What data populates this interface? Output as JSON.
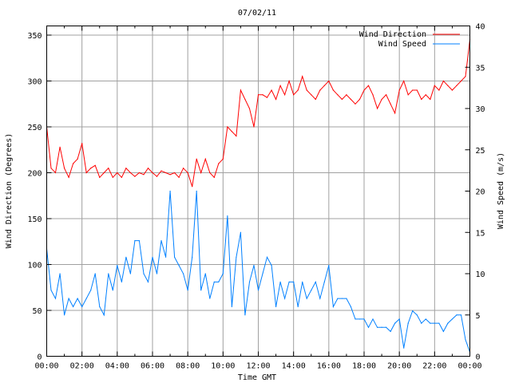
{
  "chart_data": {
    "type": "line",
    "title": "07/02/11",
    "xlabel": "Time GMT",
    "ylabel": "Wind Direction (Degrees)",
    "y2label": "Wind Speed (m/s)",
    "xlim": [
      0,
      24
    ],
    "ylim": [
      0,
      360
    ],
    "y2lim": [
      0,
      40
    ],
    "x_ticks": [
      "00:00",
      "02:00",
      "04:00",
      "06:00",
      "08:00",
      "10:00",
      "12:00",
      "14:00",
      "16:00",
      "18:00",
      "20:00",
      "22:00",
      "00:00"
    ],
    "y_ticks": [
      "0",
      "50",
      "100",
      "150",
      "200",
      "250",
      "300",
      "350"
    ],
    "y2_ticks": [
      "0",
      "5",
      "10",
      "15",
      "20",
      "25",
      "30",
      "35",
      "40"
    ],
    "grid": true,
    "legend_position": "top-right",
    "series": [
      {
        "name": "Wind Direction",
        "axis": "left",
        "color": "#ff0000",
        "x_step_hours": 0.25,
        "values": [
          250,
          205,
          200,
          228,
          205,
          195,
          210,
          215,
          232,
          200,
          205,
          208,
          195,
          200,
          205,
          195,
          200,
          195,
          205,
          200,
          196,
          200,
          198,
          205,
          200,
          196,
          202,
          200,
          198,
          200,
          195,
          205,
          200,
          185,
          215,
          200,
          215,
          200,
          195,
          210,
          215,
          250,
          245,
          240,
          290,
          280,
          270,
          250,
          285,
          285,
          282,
          290,
          280,
          295,
          285,
          300,
          285,
          290,
          305,
          290,
          285,
          280,
          290,
          295,
          300,
          290,
          285,
          280,
          285,
          280,
          275,
          280,
          290,
          295,
          285,
          270,
          280,
          285,
          275,
          265,
          290,
          300,
          285,
          290,
          290,
          280,
          285,
          280,
          295,
          290,
          300,
          295,
          290,
          295,
          300,
          305,
          345
        ]
      },
      {
        "name": "Wind Speed",
        "axis": "right",
        "color": "#0080ff",
        "x_step_hours": 0.25,
        "values": [
          13,
          8,
          7,
          10,
          5,
          7,
          6,
          7,
          6,
          7,
          8,
          10,
          6,
          5,
          10,
          8,
          11,
          9,
          12,
          10,
          14,
          14,
          10,
          9,
          12,
          10,
          14,
          12,
          20,
          12,
          11,
          10,
          8,
          12,
          20,
          8,
          10,
          7,
          9,
          9,
          10,
          17,
          6,
          12,
          15,
          5,
          9,
          11,
          8,
          10,
          12,
          11,
          6,
          9,
          7,
          9,
          9,
          6,
          9,
          7,
          8,
          9,
          7,
          9,
          11,
          6,
          7,
          7,
          7,
          6,
          4.5,
          4.5,
          4.5,
          3.5,
          4.5,
          3.5,
          3.5,
          3.5,
          3,
          4,
          4.5,
          1,
          4,
          5.5,
          5,
          4,
          4.5,
          4,
          4,
          4,
          3,
          4,
          4.5,
          5,
          5,
          2,
          0.5
        ]
      }
    ]
  }
}
